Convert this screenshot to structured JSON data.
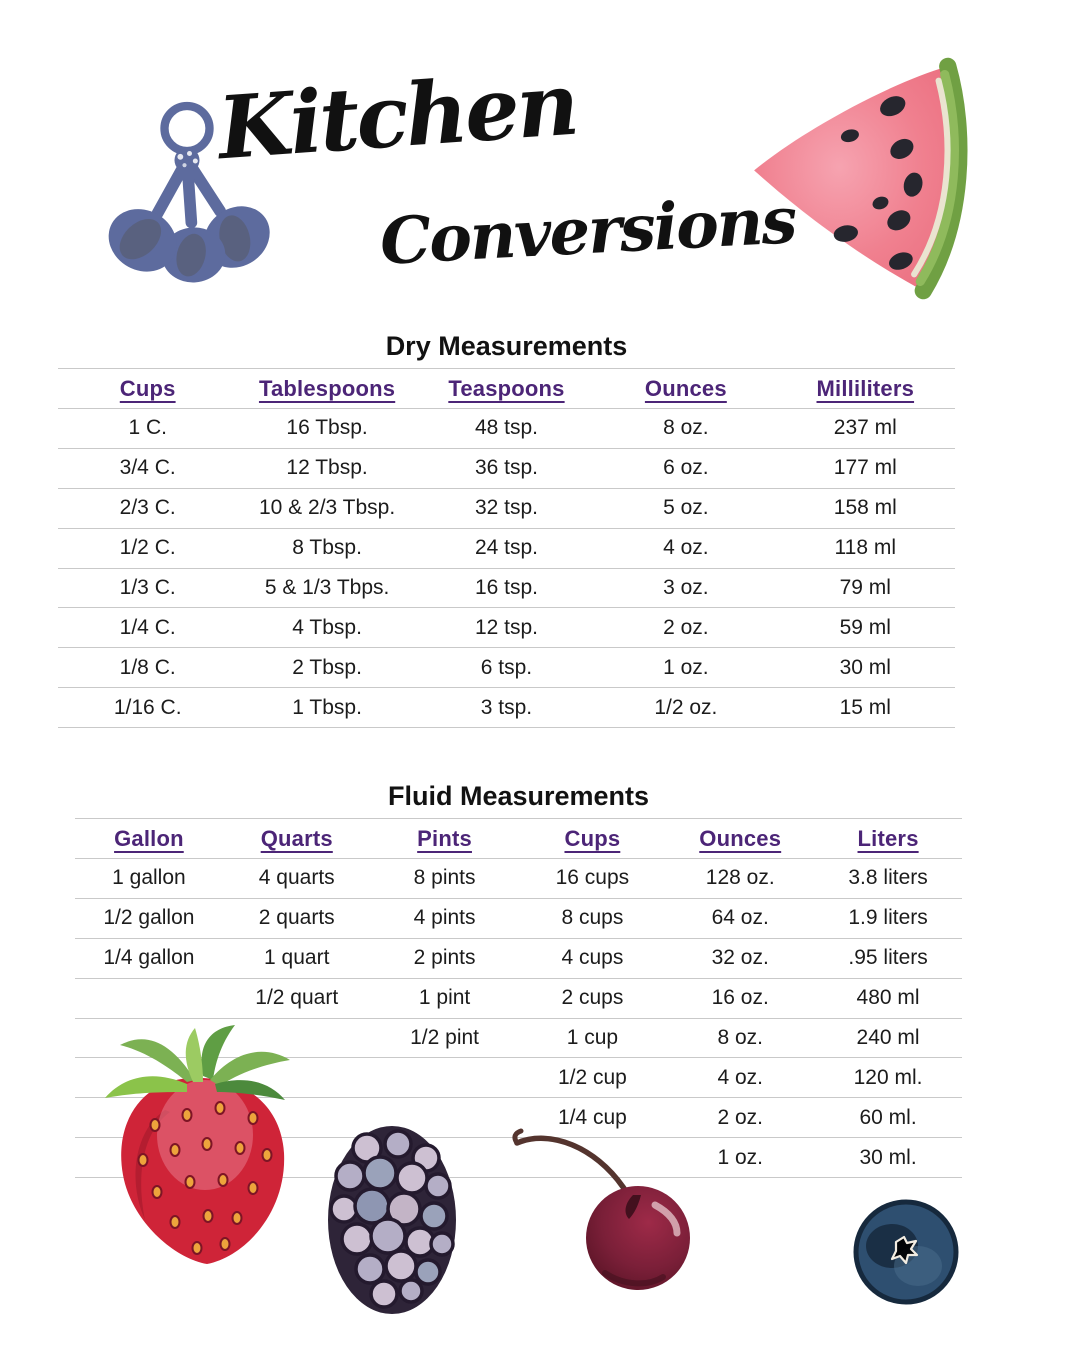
{
  "header": {
    "title_line1": "Kitchen",
    "title_line2": "Conversions"
  },
  "dry_table": {
    "title": "Dry Measurements",
    "columns": [
      "Cups",
      "Tablespoons",
      "Teaspoons",
      "Ounces",
      "Milliliters"
    ],
    "rows": [
      [
        "1 C.",
        "16 Tbsp.",
        "48 tsp.",
        "8 oz.",
        "237 ml"
      ],
      [
        "3/4 C.",
        "12 Tbsp.",
        "36 tsp.",
        "6 oz.",
        "177 ml"
      ],
      [
        "2/3 C.",
        "10 & 2/3 Tbsp.",
        "32 tsp.",
        "5 oz.",
        "158 ml"
      ],
      [
        "1/2 C.",
        "8 Tbsp.",
        "24 tsp.",
        "4 oz.",
        "118 ml"
      ],
      [
        "1/3 C.",
        "5 & 1/3 Tbps.",
        "16 tsp.",
        "3 oz.",
        "79 ml"
      ],
      [
        "1/4 C.",
        "4 Tbsp.",
        "12 tsp.",
        "2 oz.",
        "59 ml"
      ],
      [
        "1/8 C.",
        "2 Tbsp.",
        "6 tsp.",
        "1 oz.",
        "30 ml"
      ],
      [
        "1/16 C.",
        "1 Tbsp.",
        "3 tsp.",
        "1/2 oz.",
        "15 ml"
      ]
    ]
  },
  "fluid_table": {
    "title": "Fluid Measurements",
    "columns": [
      "Gallon",
      "Quarts",
      "Pints",
      "Cups",
      "Ounces",
      "Liters"
    ],
    "rows": [
      [
        "1 gallon",
        "4 quarts",
        "8 pints",
        "16 cups",
        "128 oz.",
        "3.8 liters"
      ],
      [
        "1/2 gallon",
        "2 quarts",
        "4 pints",
        "8 cups",
        "64 oz.",
        "1.9 liters"
      ],
      [
        "1/4 gallon",
        "1 quart",
        "2 pints",
        "4 cups",
        "32 oz.",
        ".95 liters"
      ],
      [
        "",
        "1/2 quart",
        "1 pint",
        "2 cups",
        "16 oz.",
        "480 ml"
      ],
      [
        "",
        "",
        "1/2 pint",
        "1 cup",
        "8 oz.",
        "240 ml"
      ],
      [
        "",
        "",
        "",
        "1/2 cup",
        "4 oz.",
        "120 ml."
      ],
      [
        "",
        "",
        "",
        "1/4 cup",
        "2 oz.",
        "60 ml."
      ],
      [
        "",
        "",
        "",
        "",
        "1 oz.",
        "30 ml."
      ]
    ]
  },
  "illustrations": {
    "measuring_spoons": "measuring-spoons-illustration",
    "watermelon": "watermelon-slice-illustration",
    "strawberry": "strawberry-illustration",
    "blackberry": "blackberry-illustration",
    "cherry": "cherry-illustration",
    "blueberry": "blueberry-illustration"
  },
  "colors": {
    "header_purple": "#4c2577",
    "grid_line": "#c9c9c9",
    "text_black": "#1c1c1c",
    "spoon_blue": "#5d6b9e"
  }
}
